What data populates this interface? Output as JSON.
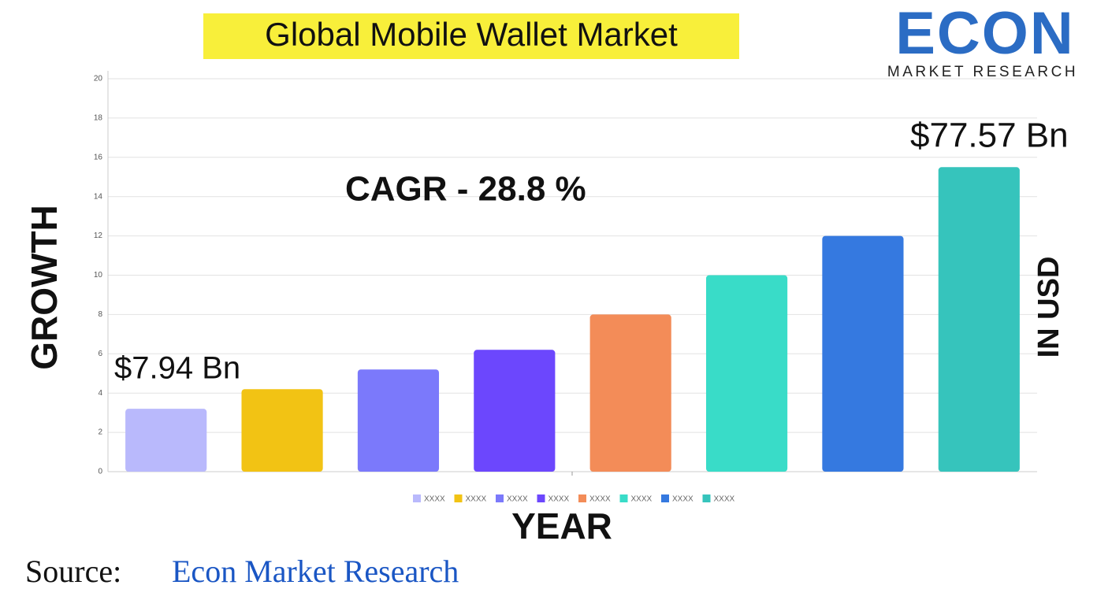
{
  "chart_data": {
    "type": "bar",
    "title": "Global Mobile Wallet Market",
    "x_label": "YEAR",
    "y_label": "GROWTH",
    "y2_label": "IN USD",
    "categories": [
      null
    ],
    "series": [
      {
        "name": "XXXX",
        "color": "#b9b9fc",
        "values": [
          3.2
        ]
      },
      {
        "name": "XXXX",
        "color": "#f2c314",
        "values": [
          4.2
        ]
      },
      {
        "name": "XXXX",
        "color": "#7b79fb",
        "values": [
          5.2
        ]
      },
      {
        "name": "XXXX",
        "color": "#6c47fd",
        "values": [
          6.2
        ]
      },
      {
        "name": "XXXX",
        "color": "#f38c58",
        "values": [
          8
        ]
      },
      {
        "name": "XXXX",
        "color": "#39dcc8",
        "values": [
          10
        ]
      },
      {
        "name": "XXXX",
        "color": "#3579e0",
        "values": [
          12
        ]
      },
      {
        "name": "XXXX",
        "color": "#36c4bc",
        "values": [
          15.5
        ]
      }
    ],
    "ylim": [
      0,
      20
    ],
    "yticks": [
      0,
      2,
      4,
      6,
      8,
      10,
      12,
      14,
      16,
      18,
      20
    ],
    "grid": true,
    "legend": "bottom",
    "annotations": [
      "$7.94 Bn",
      "$77.57 Bn",
      "CAGR  - 28.8 %"
    ]
  },
  "source": {
    "label": "Source:",
    "text": "Econ Market Research"
  },
  "logo": {
    "name": "ECON",
    "tagline": "MARKET RESEARCH"
  }
}
